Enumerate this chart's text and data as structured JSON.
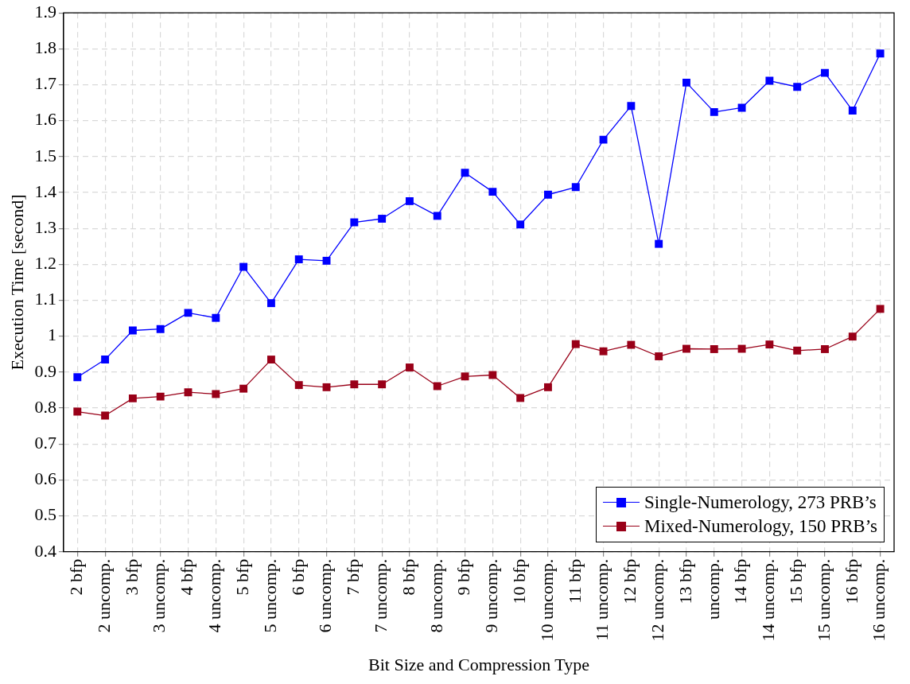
{
  "chart_data": {
    "type": "line",
    "xlabel": "Bit Size and Compression Type",
    "ylabel": "Execution Time [second]",
    "categories": [
      "2 bfp",
      "2 uncomp.",
      "3 bfp",
      "3 uncomp.",
      "4 bfp",
      "4 uncomp.",
      "5 bfp",
      "5 uncomp.",
      "6 bfp",
      "6 uncomp.",
      "7 bfp",
      "7 uncomp.",
      "8 bfp",
      "8 uncomp.",
      "9 bfp",
      "9 uncomp.",
      "10 bfp",
      "10 uncomp.",
      "11 bfp",
      "11 uncomp.",
      "12 bfp",
      "12 uncomp.",
      "13 bfp",
      "uncomp.",
      "14 bfp",
      "14 uncomp.",
      "15 bfp",
      "15 uncomp.",
      "16 bfp",
      "16 uncomp."
    ],
    "series": [
      {
        "name": "Single-Numerology, 273 PRB’s",
        "color": "#0000ff",
        "values": [
          0.886,
          0.935,
          1.016,
          1.02,
          1.065,
          1.051,
          1.193,
          1.092,
          1.214,
          1.21,
          1.317,
          1.327,
          1.376,
          1.335,
          1.455,
          1.402,
          1.311,
          1.394,
          1.415,
          1.547,
          1.641,
          1.257,
          1.706,
          1.624,
          1.636,
          1.711,
          1.694,
          1.733,
          1.628,
          1.787
        ]
      },
      {
        "name": "Mixed-Numerology, 150 PRB’s",
        "color": "#990018",
        "values": [
          0.79,
          0.779,
          0.827,
          0.832,
          0.844,
          0.839,
          0.854,
          0.935,
          0.864,
          0.858,
          0.866,
          0.866,
          0.913,
          0.861,
          0.888,
          0.892,
          0.828,
          0.858,
          0.978,
          0.958,
          0.976,
          0.944,
          0.965,
          0.964,
          0.965,
          0.977,
          0.96,
          0.964,
          0.999,
          1.076
        ]
      }
    ],
    "ylim": [
      0.4,
      1.9
    ],
    "yticks": [
      0.4,
      0.5,
      0.6,
      0.7,
      0.8,
      0.9,
      {
        "value": 1,
        "label": "1"
      },
      1.1,
      1.2,
      1.3,
      1.4,
      1.5,
      1.6,
      1.7,
      1.8,
      1.9
    ],
    "grid": true,
    "legend": "bottom right",
    "marker": "square",
    "line_style": "solid"
  }
}
